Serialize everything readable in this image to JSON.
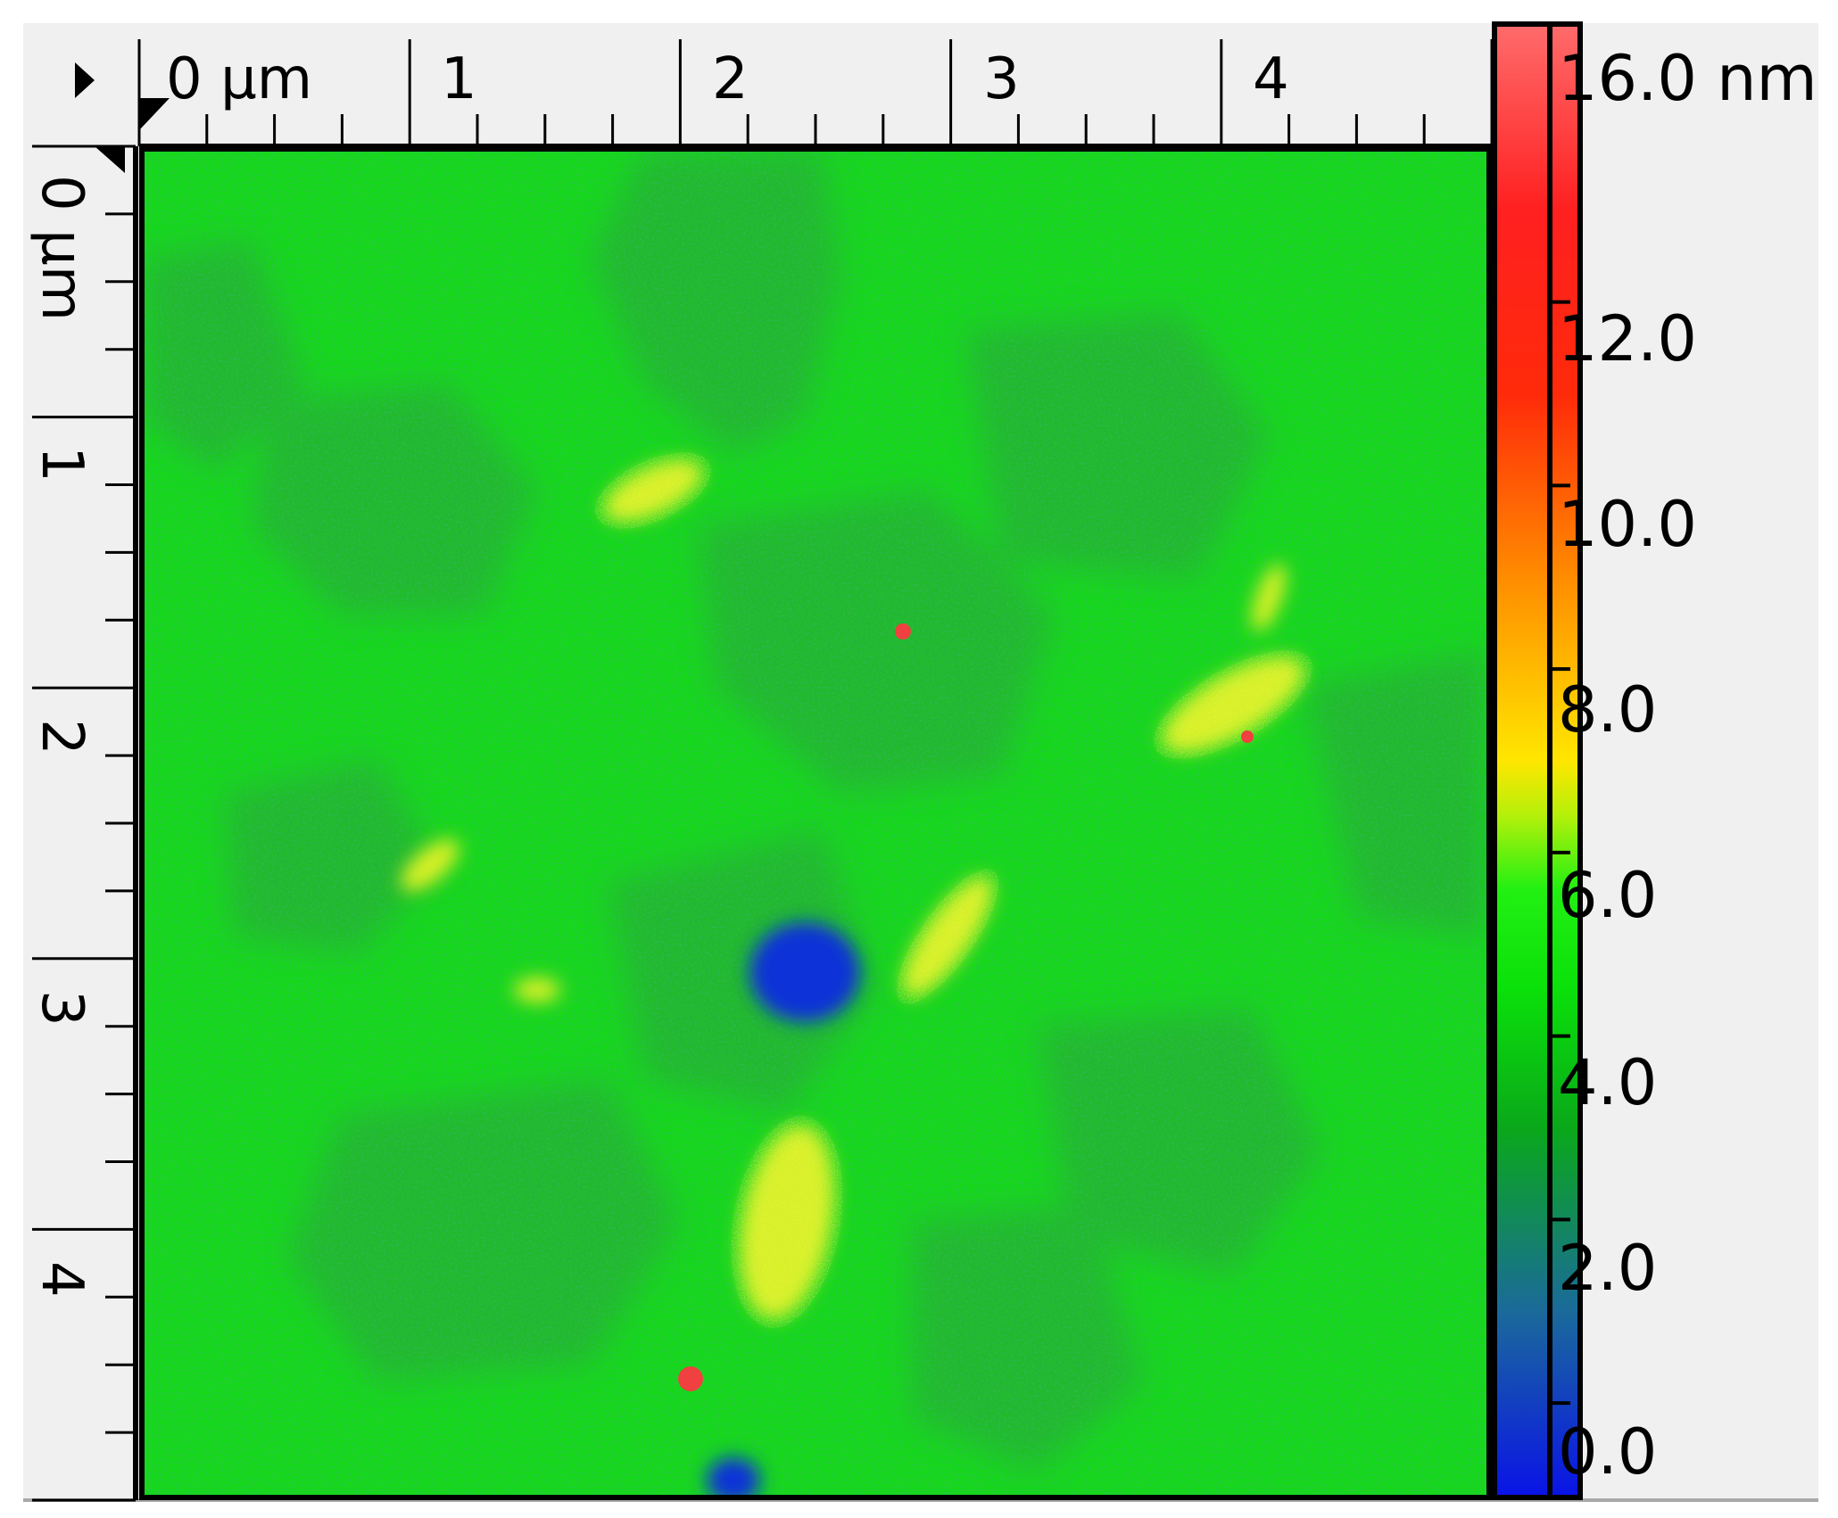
{
  "x_axis": {
    "unit_label": "0 µm",
    "labels": [
      "1",
      "2",
      "3",
      "4"
    ]
  },
  "y_axis": {
    "unit_label": "0 µm",
    "labels": [
      "1",
      "2",
      "3",
      "4"
    ]
  },
  "colorbar": {
    "max_label": "16.0 nm",
    "labels": [
      "12.0",
      "10.0",
      "8.0",
      "6.0",
      "4.0",
      "2.0",
      "0.0"
    ],
    "stops": [
      {
        "value": 0.0,
        "color": "#0a14e6"
      },
      {
        "value": 2.0,
        "color": "#1a6a9a"
      },
      {
        "value": 4.0,
        "color": "#0aa81a"
      },
      {
        "value": 5.5,
        "color": "#0ae00a"
      },
      {
        "value": 6.6,
        "color": "#22f012"
      },
      {
        "value": 7.4,
        "color": "#b4f00a"
      },
      {
        "value": 8.0,
        "color": "#ffe600"
      },
      {
        "value": 10.0,
        "color": "#ff8c00"
      },
      {
        "value": 12.0,
        "color": "#ff2a0a"
      },
      {
        "value": 14.0,
        "color": "#ff2020"
      },
      {
        "value": 16.0,
        "color": "#ff6a6a"
      }
    ]
  },
  "image": {
    "scan_size_um": 5.0,
    "height_range_nm": [
      0.0,
      16.0
    ],
    "background_color": "#16d81a",
    "low_region_color": "#2aa03e",
    "pit_color": "#1030d8",
    "ridge_color": "#d8f028",
    "particle_color": "#f04040"
  }
}
